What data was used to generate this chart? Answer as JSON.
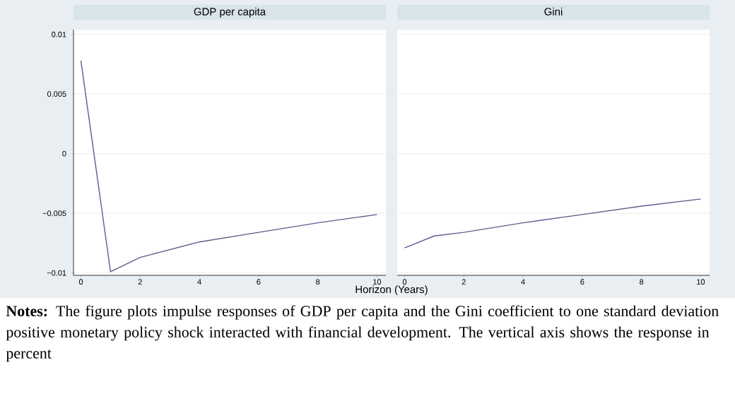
{
  "chart_data": [
    {
      "type": "line",
      "title": "GDP per capita",
      "xlabel": "Horizon (Years)",
      "x": [
        0,
        1,
        2,
        4,
        6,
        8,
        10
      ],
      "series": [
        {
          "color": "#5b5f8e",
          "values": [
            0.0078,
            -0.0099,
            -0.0087,
            -0.0074,
            -0.0066,
            -0.0058,
            -0.0051
          ]
        }
      ],
      "xlim": [
        -0.25,
        10.3
      ],
      "ylim": [
        -0.0102,
        0.0104
      ],
      "xticks": [
        0,
        2,
        4,
        6,
        8,
        10
      ],
      "yticks": [
        {
          "value": -0.01,
          "label": "−0.01"
        },
        {
          "value": -0.005,
          "label": "−0.005"
        },
        0,
        0.005,
        0.01
      ],
      "grid": "y",
      "annotations": [
        "**Notes:** The figure plots impulse responses of GDP per capita and the Gini coefficient to one standard deviation positive monetary policy shock interacted with financial development. The vertical axis shows the response in percent"
      ]
    },
    {
      "type": "line",
      "title": "Gini",
      "x": [
        0,
        1,
        2,
        4,
        6,
        8,
        10
      ],
      "series": [
        {
          "color": "#5b5f8e",
          "values": [
            -0.0079,
            -0.0069,
            -0.0066,
            -0.0058,
            -0.0051,
            -0.0044,
            -0.0038
          ]
        }
      ],
      "xlim": [
        -0.25,
        10.3
      ],
      "ylim": [
        -0.0102,
        0.0104
      ],
      "xticks": [
        0,
        2,
        4,
        6,
        8,
        10
      ],
      "yticks": [
        -0.01,
        -0.005,
        0,
        0.005,
        0.01
      ],
      "grid": "y",
      "tick_labels": "x"
    }
  ]
}
